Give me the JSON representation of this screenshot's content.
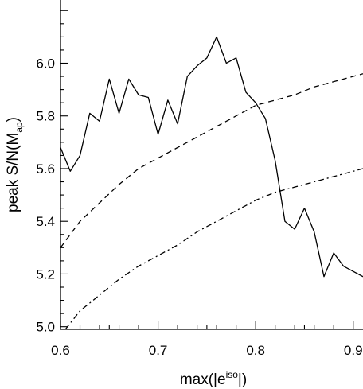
{
  "chart_data": {
    "type": "line",
    "xlabel": {
      "main": "max(|e",
      "sup": "iso",
      "tail": "|)"
    },
    "ylabel": {
      "main": "peak S/N(M",
      "sub": "ap",
      "tail": ")"
    },
    "xlim": [
      0.6,
      0.91
    ],
    "ylim": [
      4.99,
      6.24
    ],
    "x_ticks": [
      0.6,
      0.7,
      0.8,
      0.9
    ],
    "x_tick_labels": [
      "0.6",
      "0.7",
      "0.8",
      "0.9"
    ],
    "y_ticks": [
      5.0,
      5.2,
      5.4,
      5.6,
      5.8,
      6.0
    ],
    "y_tick_labels": [
      "5.0",
      "5.2",
      "5.4",
      "5.6",
      "5.8",
      "6.0"
    ],
    "grid": false,
    "series": [
      {
        "style": "solid",
        "x": [
          0.6,
          0.61,
          0.62,
          0.63,
          0.64,
          0.65,
          0.66,
          0.67,
          0.68,
          0.69,
          0.7,
          0.71,
          0.72,
          0.73,
          0.74,
          0.75,
          0.76,
          0.77,
          0.78,
          0.79,
          0.8,
          0.81,
          0.82,
          0.83,
          0.84,
          0.85,
          0.86,
          0.87,
          0.88,
          0.89,
          0.9,
          0.91
        ],
        "y": [
          5.68,
          5.59,
          5.65,
          5.81,
          5.78,
          5.94,
          5.81,
          5.94,
          5.88,
          5.87,
          5.73,
          5.86,
          5.77,
          5.95,
          5.99,
          6.02,
          6.1,
          6.0,
          6.02,
          5.89,
          5.85,
          5.79,
          5.63,
          5.4,
          5.37,
          5.45,
          5.36,
          5.19,
          5.28,
          5.23,
          5.21,
          5.19
        ]
      },
      {
        "style": "dashed",
        "x": [
          0.6,
          0.62,
          0.64,
          0.66,
          0.68,
          0.7,
          0.72,
          0.74,
          0.76,
          0.78,
          0.8,
          0.82,
          0.84,
          0.86,
          0.88,
          0.9,
          0.91
        ],
        "y": [
          5.3,
          5.4,
          5.47,
          5.54,
          5.6,
          5.64,
          5.68,
          5.72,
          5.76,
          5.8,
          5.84,
          5.86,
          5.88,
          5.91,
          5.93,
          5.95,
          5.96
        ]
      },
      {
        "style": "dashdot",
        "x": [
          0.605,
          0.62,
          0.64,
          0.66,
          0.68,
          0.7,
          0.72,
          0.74,
          0.76,
          0.78,
          0.8,
          0.82,
          0.84,
          0.86,
          0.88,
          0.9,
          0.91
        ],
        "y": [
          4.99,
          5.06,
          5.12,
          5.18,
          5.23,
          5.27,
          5.31,
          5.36,
          5.4,
          5.44,
          5.48,
          5.51,
          5.53,
          5.55,
          5.57,
          5.59,
          5.6
        ]
      }
    ]
  }
}
